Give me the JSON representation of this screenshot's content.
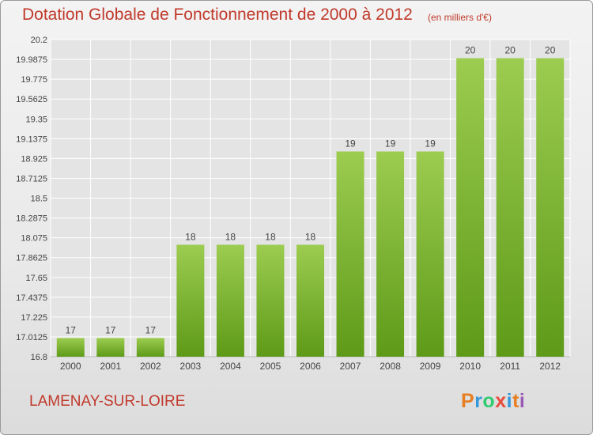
{
  "header": {
    "title": "Dotation Globale de Fonctionnement de 2000 à 2012",
    "unit": "(en milliers d'€)"
  },
  "footer": {
    "commune": "LAMENAY-SUR-LOIRE",
    "logo_text": "Proxiti",
    "logo_colors": [
      "#e67e22",
      "#3498db",
      "#2ecc71",
      "#e74c3c",
      "#3498db",
      "#e67e22",
      "#9b59b6"
    ]
  },
  "colors": {
    "bar_top": "#9ccc50",
    "bar_bottom": "#5e9a18",
    "text": "#444444",
    "grid": "#ffffff",
    "title": "#c0392b"
  },
  "chart_data": {
    "type": "bar",
    "title": "Dotation Globale de Fonctionnement de 2000 à 2012",
    "subtitle": "(en milliers d'€)",
    "xlabel": "",
    "ylabel": "",
    "categories": [
      "2000",
      "2001",
      "2002",
      "2003",
      "2004",
      "2005",
      "2006",
      "2007",
      "2008",
      "2009",
      "2010",
      "2011",
      "2012"
    ],
    "values": [
      17,
      17,
      17,
      18,
      18,
      18,
      18,
      19,
      19,
      19,
      20,
      20,
      20
    ],
    "data_labels": [
      "17",
      "17",
      "17",
      "18",
      "18",
      "18",
      "18",
      "19",
      "19",
      "19",
      "20",
      "20",
      "20"
    ],
    "ylim": [
      16.8,
      20.2
    ],
    "yticks": [
      16.8,
      17.0125,
      17.225,
      17.4375,
      17.65,
      17.8625,
      18.075,
      18.2875,
      18.5,
      18.7125,
      18.925,
      19.1375,
      19.35,
      19.5625,
      19.775,
      19.9875,
      20.2
    ],
    "ytick_labels": [
      "16.8",
      "17.0125",
      "17.225",
      "17.4375",
      "17.65",
      "17.8625",
      "18.075",
      "18.2875",
      "18.5",
      "18.7125",
      "18.925",
      "19.1375",
      "19.35",
      "19.5625",
      "19.775",
      "19.9875",
      "20.2"
    ],
    "grid": true,
    "legend": "none"
  }
}
